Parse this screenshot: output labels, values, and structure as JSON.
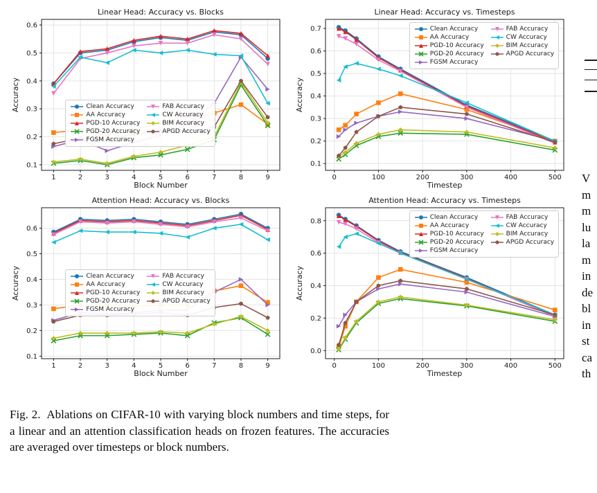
{
  "figure": {
    "caption": "Fig. 2.  Ablations on CIFAR-10 with varying block numbers and time steps, for a linear and an attention classification heads on frozen features. The accuracies are averaged over timesteps or block numbers."
  },
  "right_column": {
    "lines": [
      "V",
      "m",
      "m",
      "lu",
      "la",
      "m",
      "in",
      "de",
      "bl",
      "in",
      "st",
      "ca",
      "th"
    ]
  },
  "chart_data": [
    {
      "type": "line",
      "title": "Linear Head: Accuracy vs. Blocks",
      "xlabel": "Block Number",
      "ylabel": "Accuracy",
      "x": [
        1,
        2,
        3,
        4,
        5,
        6,
        7,
        8,
        9
      ],
      "xlim": [
        0.55,
        9.45
      ],
      "ylim": [
        0.08,
        0.62
      ],
      "xticks": [
        1,
        2,
        3,
        4,
        5,
        6,
        7,
        8,
        9
      ],
      "yticks": [
        0.1,
        0.2,
        0.3,
        0.4,
        0.5,
        0.6
      ],
      "grid": true,
      "legend_pos": {
        "left": 0.1,
        "top": 0.53
      },
      "series": [
        {
          "name": "Clean Accuracy",
          "color": "#1f77b4",
          "marker": "circle",
          "values": [
            0.39,
            0.5,
            0.51,
            0.54,
            0.555,
            0.545,
            0.575,
            0.565,
            0.48
          ]
        },
        {
          "name": "AA Accuracy",
          "color": "#ff7f0e",
          "marker": "square",
          "values": [
            0.215,
            0.225,
            0.205,
            0.225,
            0.25,
            0.25,
            0.285,
            0.315,
            0.245
          ]
        },
        {
          "name": "PGD-10 Accuracy",
          "color": "#d62728",
          "marker": "triangle-up",
          "values": [
            0.39,
            0.505,
            0.515,
            0.545,
            0.56,
            0.55,
            0.58,
            0.57,
            0.49
          ]
        },
        {
          "name": "PGD-20 Accuracy",
          "color": "#2ca02c",
          "marker": "x",
          "values": [
            0.105,
            0.115,
            0.1,
            0.125,
            0.135,
            0.155,
            0.19,
            0.385,
            0.24
          ]
        },
        {
          "name": "FGSM Accuracy",
          "color": "#9467bd",
          "marker": "triangle-right",
          "values": [
            0.165,
            0.19,
            0.15,
            0.18,
            0.205,
            0.245,
            0.32,
            0.485,
            0.37
          ]
        },
        {
          "name": "FAB Accuracy",
          "color": "#e377c2",
          "marker": "triangle-down",
          "values": [
            0.355,
            0.48,
            0.5,
            0.525,
            0.535,
            0.535,
            0.565,
            0.55,
            0.46
          ]
        },
        {
          "name": "CW Accuracy",
          "color": "#17becf",
          "marker": "triangle-left",
          "values": [
            0.38,
            0.485,
            0.465,
            0.51,
            0.5,
            0.51,
            0.495,
            0.49,
            0.32
          ]
        },
        {
          "name": "BIM Accuracy",
          "color": "#bcbd22",
          "marker": "diamond",
          "values": [
            0.11,
            0.12,
            0.105,
            0.13,
            0.145,
            0.17,
            0.2,
            0.395,
            0.25
          ]
        },
        {
          "name": "APGD Accuracy",
          "color": "#8c564b",
          "marker": "pentagon",
          "values": [
            0.175,
            0.195,
            0.19,
            0.21,
            0.22,
            0.22,
            0.235,
            0.4,
            0.27
          ]
        }
      ]
    },
    {
      "type": "line",
      "title": "Linear Head: Accuracy vs. Timesteps",
      "xlabel": "Timestep",
      "ylabel": "Accuracy",
      "x": [
        10,
        25,
        50,
        100,
        150,
        300,
        500
      ],
      "xlim": [
        -20,
        520
      ],
      "ylim": [
        0.07,
        0.74
      ],
      "xticks": [
        0,
        100,
        200,
        300,
        400,
        500
      ],
      "yticks": [
        0.1,
        0.2,
        0.3,
        0.4,
        0.5,
        0.6,
        0.7
      ],
      "grid": true,
      "legend_pos": {
        "right": 0.02,
        "top": 0.02
      },
      "series": [
        {
          "name": "Clean Accuracy",
          "color": "#1f77b4",
          "marker": "circle",
          "values": [
            0.705,
            0.69,
            0.655,
            0.575,
            0.52,
            0.36,
            0.2
          ]
        },
        {
          "name": "AA Accuracy",
          "color": "#ff7f0e",
          "marker": "square",
          "values": [
            0.25,
            0.27,
            0.32,
            0.37,
            0.41,
            0.34,
            0.2
          ]
        },
        {
          "name": "PGD-10 Accuracy",
          "color": "#d62728",
          "marker": "triangle-up",
          "values": [
            0.7,
            0.685,
            0.65,
            0.57,
            0.515,
            0.355,
            0.195
          ]
        },
        {
          "name": "PGD-20 Accuracy",
          "color": "#2ca02c",
          "marker": "x",
          "values": [
            0.12,
            0.14,
            0.18,
            0.22,
            0.235,
            0.23,
            0.16
          ]
        },
        {
          "name": "FGSM Accuracy",
          "color": "#9467bd",
          "marker": "triangle-right",
          "values": [
            0.22,
            0.25,
            0.28,
            0.31,
            0.33,
            0.3,
            0.2
          ]
        },
        {
          "name": "FAB Accuracy",
          "color": "#e377c2",
          "marker": "triangle-down",
          "values": [
            0.665,
            0.655,
            0.63,
            0.56,
            0.51,
            0.35,
            0.19
          ]
        },
        {
          "name": "CW Accuracy",
          "color": "#17becf",
          "marker": "triangle-left",
          "values": [
            0.47,
            0.53,
            0.545,
            0.52,
            0.49,
            0.37,
            0.2
          ]
        },
        {
          "name": "BIM Accuracy",
          "color": "#bcbd22",
          "marker": "diamond",
          "values": [
            0.13,
            0.15,
            0.19,
            0.23,
            0.25,
            0.24,
            0.17
          ]
        },
        {
          "name": "APGD Accuracy",
          "color": "#8c564b",
          "marker": "pentagon",
          "values": [
            0.135,
            0.17,
            0.24,
            0.31,
            0.35,
            0.32,
            0.195
          ]
        }
      ]
    },
    {
      "type": "line",
      "title": "Attention Head: Accuracy vs. Blocks",
      "xlabel": "Block Number",
      "ylabel": "Accuracy",
      "x": [
        1,
        2,
        3,
        4,
        5,
        6,
        7,
        8,
        9
      ],
      "xlim": [
        0.55,
        9.45
      ],
      "ylim": [
        0.09,
        0.68
      ],
      "xticks": [
        1,
        2,
        3,
        4,
        5,
        6,
        7,
        8,
        9
      ],
      "yticks": [
        0.1,
        0.2,
        0.3,
        0.4,
        0.5,
        0.6
      ],
      "grid": true,
      "legend_pos": {
        "left": 0.1,
        "top": 0.41
      },
      "series": [
        {
          "name": "Clean Accuracy",
          "color": "#1f77b4",
          "marker": "circle",
          "values": [
            0.585,
            0.635,
            0.63,
            0.635,
            0.625,
            0.615,
            0.635,
            0.655,
            0.6
          ]
        },
        {
          "name": "AA Accuracy",
          "color": "#ff7f0e",
          "marker": "square",
          "values": [
            0.285,
            0.3,
            0.3,
            0.295,
            0.3,
            0.3,
            0.355,
            0.375,
            0.31
          ]
        },
        {
          "name": "PGD-10 Accuracy",
          "color": "#d62728",
          "marker": "triangle-up",
          "values": [
            0.58,
            0.63,
            0.625,
            0.63,
            0.62,
            0.61,
            0.63,
            0.65,
            0.595
          ]
        },
        {
          "name": "PGD-20 Accuracy",
          "color": "#2ca02c",
          "marker": "x",
          "values": [
            0.16,
            0.18,
            0.18,
            0.185,
            0.19,
            0.18,
            0.23,
            0.25,
            0.185
          ]
        },
        {
          "name": "FGSM Accuracy",
          "color": "#9467bd",
          "marker": "triangle-right",
          "values": [
            0.24,
            0.27,
            0.265,
            0.27,
            0.28,
            0.28,
            0.35,
            0.4,
            0.3
          ]
        },
        {
          "name": "FAB Accuracy",
          "color": "#e377c2",
          "marker": "triangle-down",
          "values": [
            0.575,
            0.625,
            0.62,
            0.625,
            0.615,
            0.605,
            0.625,
            0.64,
            0.59
          ]
        },
        {
          "name": "CW Accuracy",
          "color": "#17becf",
          "marker": "triangle-left",
          "values": [
            0.545,
            0.59,
            0.585,
            0.585,
            0.58,
            0.565,
            0.6,
            0.615,
            0.555
          ]
        },
        {
          "name": "BIM Accuracy",
          "color": "#bcbd22",
          "marker": "diamond",
          "values": [
            0.17,
            0.19,
            0.19,
            0.19,
            0.195,
            0.19,
            0.225,
            0.255,
            0.2
          ]
        },
        {
          "name": "APGD Accuracy",
          "color": "#8c564b",
          "marker": "pentagon",
          "values": [
            0.235,
            0.26,
            0.26,
            0.265,
            0.27,
            0.26,
            0.29,
            0.305,
            0.25
          ]
        }
      ]
    },
    {
      "type": "line",
      "title": "Attention Head: Accuracy vs. Timesteps",
      "xlabel": "Timestep",
      "ylabel": "Accuracy",
      "x": [
        10,
        25,
        50,
        100,
        150,
        300,
        500
      ],
      "xlim": [
        -20,
        520
      ],
      "ylim": [
        -0.05,
        0.88
      ],
      "xticks": [
        0,
        100,
        200,
        300,
        400,
        500
      ],
      "yticks": [
        0.0,
        0.2,
        0.4,
        0.6,
        0.8
      ],
      "grid": true,
      "legend_pos": {
        "right": 0.02,
        "top": 0.02
      },
      "series": [
        {
          "name": "Clean Accuracy",
          "color": "#1f77b4",
          "marker": "circle",
          "values": [
            0.835,
            0.81,
            0.77,
            0.68,
            0.61,
            0.45,
            0.22
          ]
        },
        {
          "name": "AA Accuracy",
          "color": "#ff7f0e",
          "marker": "square",
          "values": [
            0.02,
            0.15,
            0.3,
            0.45,
            0.5,
            0.42,
            0.25
          ]
        },
        {
          "name": "PGD-10 Accuracy",
          "color": "#d62728",
          "marker": "triangle-up",
          "values": [
            0.83,
            0.805,
            0.765,
            0.675,
            0.605,
            0.445,
            0.215
          ]
        },
        {
          "name": "PGD-20 Accuracy",
          "color": "#2ca02c",
          "marker": "x",
          "values": [
            0.005,
            0.07,
            0.17,
            0.29,
            0.32,
            0.275,
            0.18
          ]
        },
        {
          "name": "FGSM Accuracy",
          "color": "#9467bd",
          "marker": "triangle-right",
          "values": [
            0.15,
            0.22,
            0.3,
            0.38,
            0.41,
            0.36,
            0.21
          ]
        },
        {
          "name": "FAB Accuracy",
          "color": "#e377c2",
          "marker": "triangle-down",
          "values": [
            0.79,
            0.78,
            0.75,
            0.665,
            0.6,
            0.44,
            0.21
          ]
        },
        {
          "name": "CW Accuracy",
          "color": "#17becf",
          "marker": "triangle-left",
          "values": [
            0.64,
            0.7,
            0.72,
            0.66,
            0.6,
            0.44,
            0.22
          ]
        },
        {
          "name": "BIM Accuracy",
          "color": "#bcbd22",
          "marker": "diamond",
          "values": [
            0.01,
            0.08,
            0.18,
            0.3,
            0.33,
            0.28,
            0.19
          ]
        },
        {
          "name": "APGD Accuracy",
          "color": "#8c564b",
          "marker": "pentagon",
          "values": [
            0.035,
            0.17,
            0.3,
            0.4,
            0.43,
            0.38,
            0.22
          ]
        }
      ]
    }
  ]
}
